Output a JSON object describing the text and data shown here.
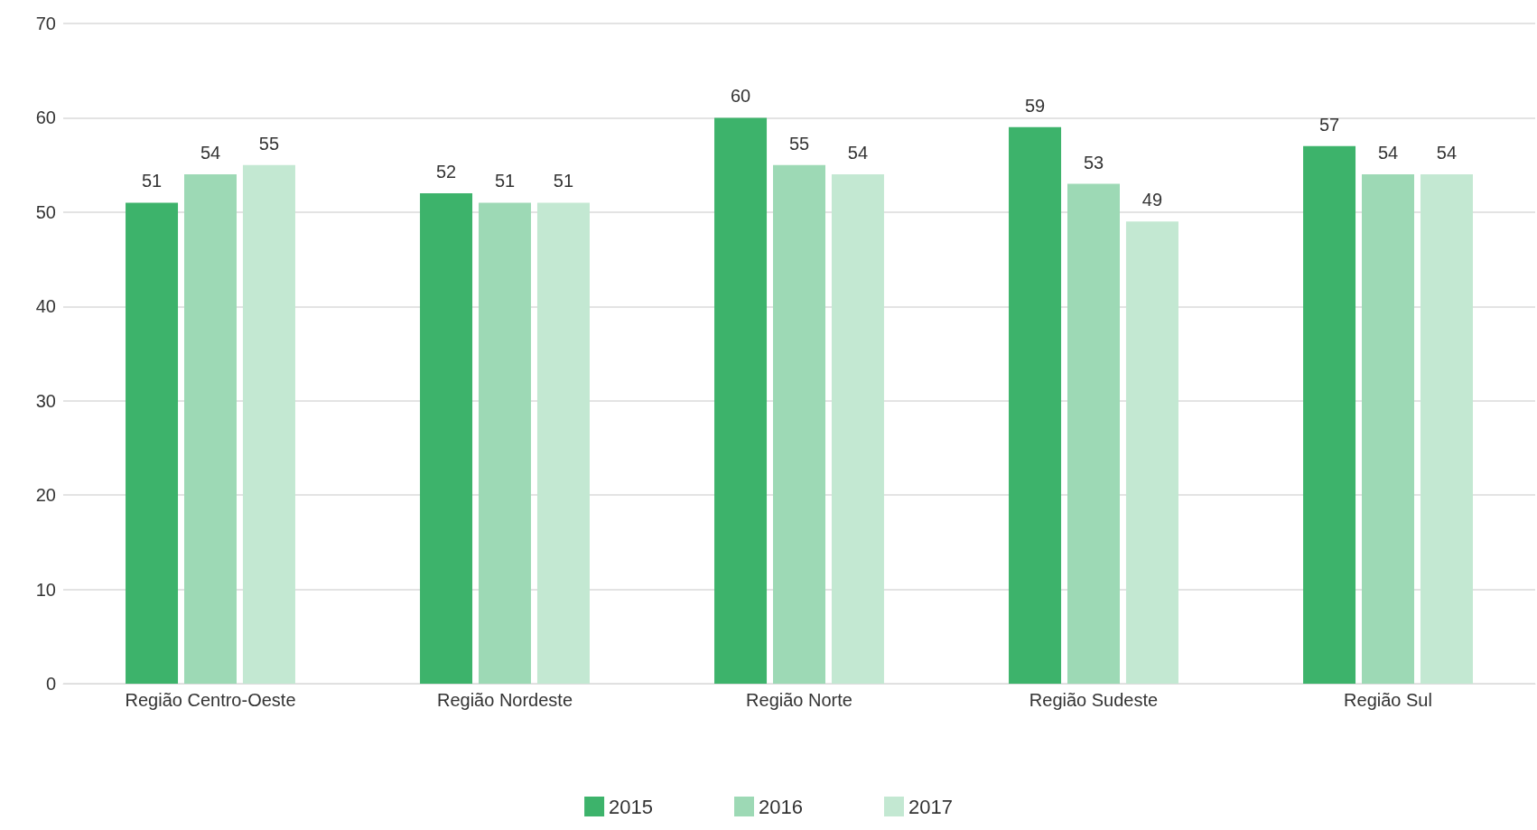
{
  "chart_data": {
    "type": "bar",
    "categories": [
      "Região Centro-Oeste",
      "Região Nordeste",
      "Região Norte",
      "Região Sudeste",
      "Região Sul"
    ],
    "series": [
      {
        "name": "2015",
        "color": "#3db36b",
        "values": [
          51,
          52,
          60,
          59,
          57
        ]
      },
      {
        "name": "2016",
        "color": "#9dd9b5",
        "values": [
          54,
          51,
          55,
          53,
          54
        ]
      },
      {
        "name": "2017",
        "color": "#c3e8d2",
        "values": [
          55,
          51,
          54,
          49,
          54
        ]
      }
    ],
    "ylim": [
      0,
      70
    ],
    "yticks": [
      0,
      10,
      20,
      30,
      40,
      50,
      60,
      70
    ],
    "grid": "y",
    "legend": "bottom",
    "data_labels": true
  }
}
